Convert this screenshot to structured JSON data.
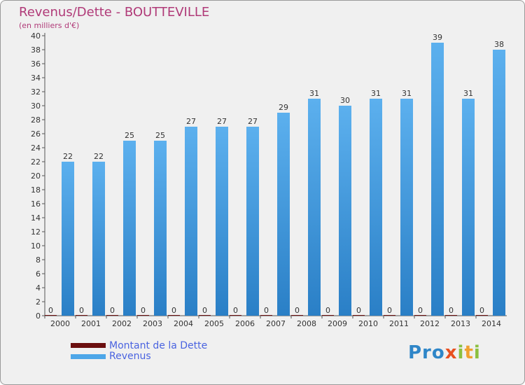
{
  "chart_data": {
    "type": "bar",
    "title": "Revenus/Dette - BOUTTEVILLE",
    "subtitle": "(en milliers d'€)",
    "categories": [
      "2000",
      "2001",
      "2002",
      "2003",
      "2004",
      "2005",
      "2006",
      "2007",
      "2008",
      "2009",
      "2010",
      "2011",
      "2012",
      "2013",
      "2014"
    ],
    "series": [
      {
        "name": "Montant de la Dette",
        "color": "#6b0f0f",
        "values": [
          0,
          0,
          0,
          0,
          0,
          0,
          0,
          0,
          0,
          0,
          0,
          0,
          0,
          0,
          0
        ]
      },
      {
        "name": "Revenus",
        "color": "#4da6e8",
        "values": [
          22,
          22,
          25,
          25,
          27,
          27,
          27,
          29,
          31,
          30,
          31,
          31,
          39,
          31,
          38
        ]
      }
    ],
    "ylim": [
      0,
      40
    ],
    "yticks": [
      0,
      2,
      4,
      6,
      8,
      10,
      12,
      14,
      16,
      18,
      20,
      22,
      24,
      26,
      28,
      30,
      32,
      34,
      36,
      38,
      40
    ],
    "grid": false,
    "legend_position": "bottom-left"
  },
  "logo": {
    "part1": "Pro",
    "part2": "x",
    "part3": "i",
    "part4": "t",
    "part5": "i"
  }
}
